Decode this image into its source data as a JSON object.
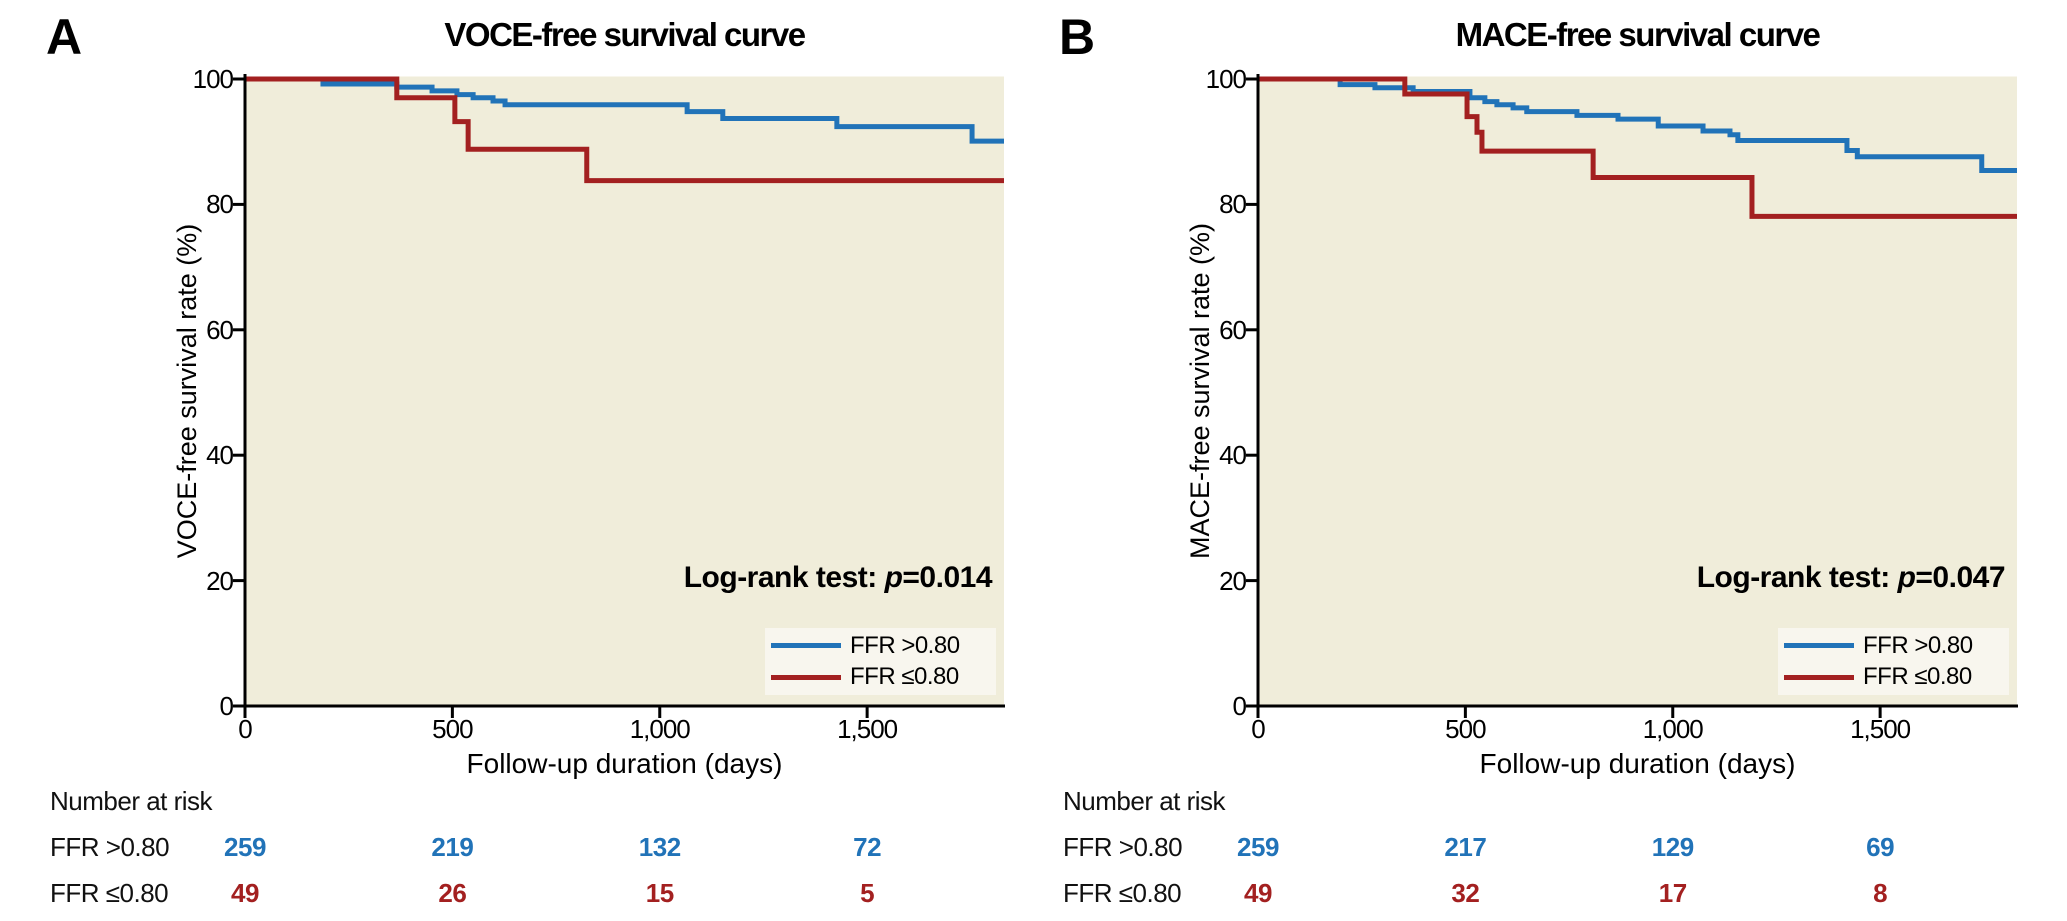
{
  "figure_type": "kaplan-meier-survival-figure",
  "colors": {
    "series_blue": "#2173b8",
    "series_red": "#a32020",
    "plot_background": "#f0edda",
    "legend_background": "#f8f6ee",
    "axis": "#000000"
  },
  "chart_data": [
    {
      "type": "line",
      "subtype": "kaplan-meier-step",
      "panel_label": "A",
      "title": "VOCE-free survival curve",
      "xlabel": "Follow-up duration (days)",
      "ylabel": "VOCE-free survival rate (%)",
      "xlim": [
        0,
        1830
      ],
      "ylim": [
        0,
        100
      ],
      "grid": false,
      "plot_bg": "#f0edda",
      "x_ticks": {
        "values": [
          0,
          500,
          1000,
          1500
        ],
        "labels": [
          "0",
          "500",
          "1,000",
          "1,500"
        ]
      },
      "y_ticks": {
        "values": [
          100,
          80,
          60,
          40,
          20,
          0
        ],
        "labels": [
          "100",
          "80",
          "60",
          "40",
          "20",
          "0"
        ]
      },
      "annotation": {
        "prefix": "Log-rank test: ",
        "italic": "p",
        "value": "=0.014"
      },
      "legend": {
        "position": "inside-bottom-right",
        "bg": "#f8f6ee"
      },
      "series": [
        {
          "name": "FFR >0.80",
          "color": "#2173b8",
          "steps_day_pct": [
            [
              0,
              100
            ],
            [
              188,
              99.2
            ],
            [
              366,
              98.7
            ],
            [
              451,
              98.1
            ],
            [
              511,
              97.5
            ],
            [
              550,
              97.0
            ],
            [
              598,
              96.5
            ],
            [
              627,
              95.9
            ],
            [
              1066,
              94.8
            ],
            [
              1152,
              93.7
            ],
            [
              1427,
              92.4
            ],
            [
              1753,
              90.1
            ]
          ]
        },
        {
          "name": "FFR ≤0.80",
          "color": "#a32020",
          "steps_day_pct": [
            [
              0,
              100
            ],
            [
              366,
              97.0
            ],
            [
              506,
              93.2
            ],
            [
              538,
              88.8
            ],
            [
              824,
              83.8
            ]
          ]
        }
      ],
      "risk_table": {
        "title": "Number at risk",
        "time_points": [
          0,
          500,
          1000,
          1500
        ],
        "rows": [
          {
            "label": "FFR >0.80",
            "color": "#2173b8",
            "values": [
              "259",
              "219",
              "132",
              "72"
            ]
          },
          {
            "label": "FFR ≤0.80",
            "color": "#a32020",
            "values": [
              "49",
              "26",
              "15",
              "5"
            ]
          }
        ]
      }
    },
    {
      "type": "line",
      "subtype": "kaplan-meier-step",
      "panel_label": "B",
      "title": "MACE-free survival curve",
      "xlabel": "Follow-up duration (days)",
      "ylabel": "MACE-free survival rate (%)",
      "xlim": [
        0,
        1830
      ],
      "ylim": [
        0,
        100
      ],
      "grid": false,
      "plot_bg": "#f0edda",
      "x_ticks": {
        "values": [
          0,
          500,
          1000,
          1500
        ],
        "labels": [
          "0",
          "500",
          "1,000",
          "1,500"
        ]
      },
      "y_ticks": {
        "values": [
          100,
          80,
          60,
          40,
          20,
          0
        ],
        "labels": [
          "100",
          "80",
          "60",
          "40",
          "20",
          "0"
        ]
      },
      "annotation": {
        "prefix": "Log-rank test: ",
        "italic": "p",
        "value": "=0.047"
      },
      "legend": {
        "position": "inside-bottom-right",
        "bg": "#f8f6ee"
      },
      "series": [
        {
          "name": "FFR >0.80",
          "color": "#2173b8",
          "steps_day_pct": [
            [
              0,
              100
            ],
            [
              198,
              99.1
            ],
            [
              282,
              98.6
            ],
            [
              374,
              98.0
            ],
            [
              511,
              97.0
            ],
            [
              547,
              96.4
            ],
            [
              576,
              95.9
            ],
            [
              615,
              95.4
            ],
            [
              648,
              94.8
            ],
            [
              769,
              94.2
            ],
            [
              868,
              93.6
            ],
            [
              965,
              92.5
            ],
            [
              1073,
              91.7
            ],
            [
              1138,
              91.1
            ],
            [
              1157,
              90.2
            ],
            [
              1420,
              88.6
            ],
            [
              1445,
              87.6
            ],
            [
              1745,
              85.4
            ]
          ]
        },
        {
          "name": "FFR ≤0.80",
          "color": "#a32020",
          "steps_day_pct": [
            [
              0,
              100
            ],
            [
              354,
              97.6
            ],
            [
              504,
              94.0
            ],
            [
              528,
              91.5
            ],
            [
              540,
              88.5
            ],
            [
              808,
              84.3
            ],
            [
              1191,
              78.1
            ]
          ]
        }
      ],
      "risk_table": {
        "title": "Number at risk",
        "time_points": [
          0,
          500,
          1000,
          1500
        ],
        "rows": [
          {
            "label": "FFR >0.80",
            "color": "#2173b8",
            "values": [
              "259",
              "217",
              "129",
              "69"
            ]
          },
          {
            "label": "FFR ≤0.80",
            "color": "#a32020",
            "values": [
              "49",
              "32",
              "17",
              "8"
            ]
          }
        ]
      }
    }
  ]
}
